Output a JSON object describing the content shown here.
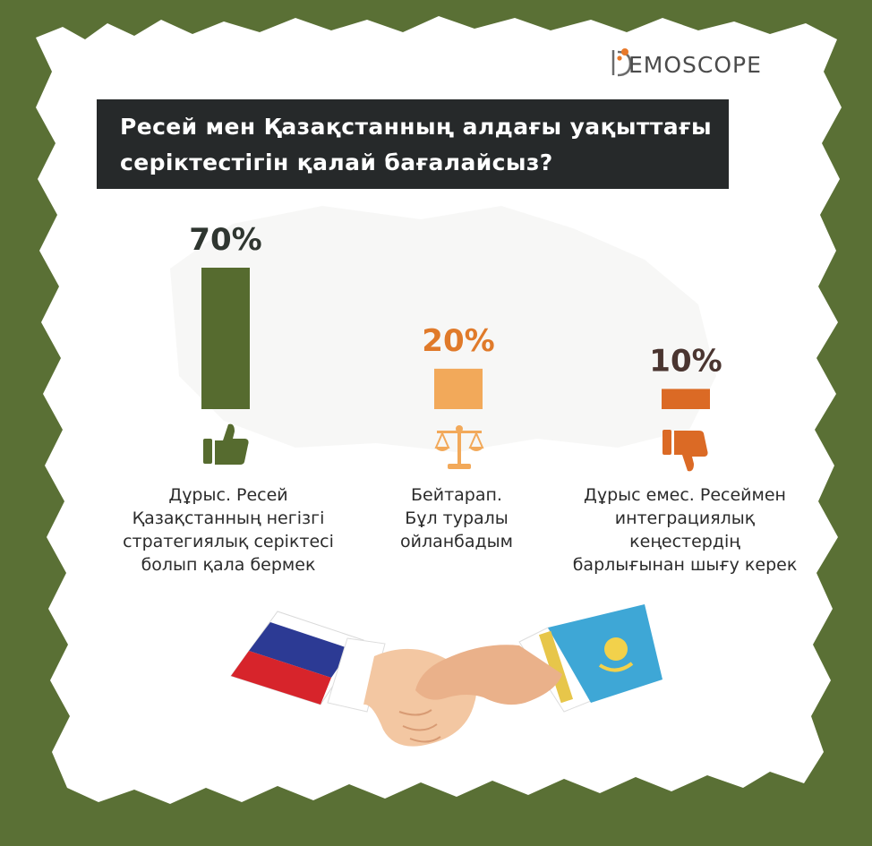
{
  "logo": {
    "text": "EMOSCOPE"
  },
  "title": {
    "line1": "Ресей мен Қазақстанның алдағы уақыттағы",
    "line2": "серіктестігін қалай бағалайсыз?"
  },
  "colors": {
    "background": "#5a7035",
    "paper": "#ffffff",
    "title_box": "#26292a",
    "bar_yes": "#566b2f",
    "bar_neutral": "#f2a95a",
    "bar_no": "#db6a25",
    "pct_yes": "#2f3630",
    "pct_neutral": "#e07a2a",
    "pct_no": "#4a3530"
  },
  "chart_data": {
    "type": "bar",
    "categories": [
      "Дұрыс. Ресей Қазақстанның негізгі стратегиялық серіктесі болып қала бермек",
      "Бейтарап. Бұл туралы ойланбадым",
      "Дұрыс емес. Ресеймен интеграциялық кеңестердің барлығынан шығу керек"
    ],
    "values": [
      70,
      20,
      10
    ],
    "value_labels": [
      "70%",
      "20%",
      "10%"
    ],
    "unit": "%",
    "icons": [
      "thumbs-up-icon",
      "scales-icon",
      "thumbs-down-icon"
    ],
    "label_lines": [
      [
        "Дұрыс. Ресей",
        "Қазақстанның негізгі",
        "стратегиялық серіктесі",
        "болып қала бермек"
      ],
      [
        "Бейтарап.",
        "Бұл туралы",
        "ойланбадым"
      ],
      [
        "Дұрыс емес. Ресеймен",
        "интеграциялық",
        "кеңестердің",
        "барлығынан шығу керек"
      ]
    ],
    "ylim": [
      0,
      70
    ]
  }
}
